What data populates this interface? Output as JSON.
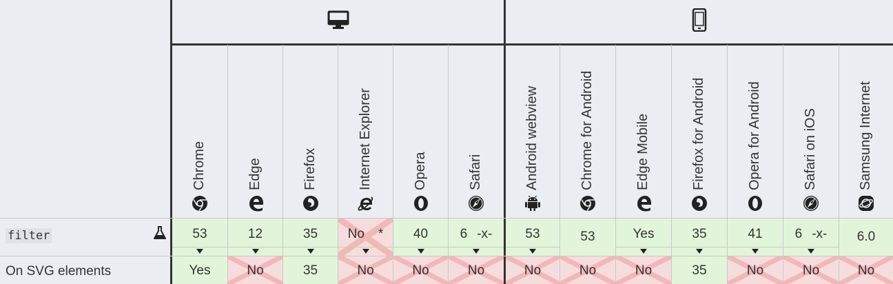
{
  "header": {
    "desktop_icon": "desktop-icon",
    "mobile_icon": "mobile-phone-icon"
  },
  "browsers": [
    {
      "name": "Chrome",
      "icon": "chrome-icon"
    },
    {
      "name": "Edge",
      "icon": "edge-icon"
    },
    {
      "name": "Firefox",
      "icon": "firefox-icon"
    },
    {
      "name": "Internet Explorer",
      "icon": "internet-explorer-icon"
    },
    {
      "name": "Opera",
      "icon": "opera-icon"
    },
    {
      "name": "Safari",
      "icon": "safari-icon"
    },
    {
      "name": "Android webview",
      "icon": "android-icon"
    },
    {
      "name": "Chrome for Android",
      "icon": "chrome-icon"
    },
    {
      "name": "Edge Mobile",
      "icon": "edge-icon"
    },
    {
      "name": "Firefox for Android",
      "icon": "firefox-icon"
    },
    {
      "name": "Opera for Android",
      "icon": "opera-icon"
    },
    {
      "name": "Safari on iOS",
      "icon": "safari-icon"
    },
    {
      "name": "Samsung Internet",
      "icon": "samsung-internet-icon"
    }
  ],
  "rows": [
    {
      "feature": "filter",
      "feature_icon": "experimental-flask-icon",
      "cells": [
        {
          "text": "53",
          "support": "yes",
          "arrow": true
        },
        {
          "text": "12",
          "support": "yes",
          "arrow": true
        },
        {
          "text": "35",
          "support": "yes",
          "arrow": true
        },
        {
          "text": "No",
          "support": "no",
          "arrow": true,
          "note": "*"
        },
        {
          "text": "40",
          "support": "yes",
          "arrow": true
        },
        {
          "text": "6",
          "support": "yes",
          "arrow": true,
          "prefix": "-x-"
        },
        {
          "text": "53",
          "support": "yes",
          "arrow": true
        },
        {
          "text": "53",
          "support": "yes",
          "arrow": false
        },
        {
          "text": "Yes",
          "support": "yes",
          "arrow": true
        },
        {
          "text": "35",
          "support": "yes",
          "arrow": true
        },
        {
          "text": "41",
          "support": "yes",
          "arrow": true
        },
        {
          "text": "6",
          "support": "yes",
          "arrow": true,
          "prefix": "-x-"
        },
        {
          "text": "6.0",
          "support": "yes",
          "arrow": false
        }
      ]
    },
    {
      "feature": "On SVG elements",
      "cells": [
        {
          "text": "Yes",
          "support": "yes"
        },
        {
          "text": "No",
          "support": "no"
        },
        {
          "text": "35",
          "support": "yes"
        },
        {
          "text": "No",
          "support": "no"
        },
        {
          "text": "No",
          "support": "no"
        },
        {
          "text": "No",
          "support": "no"
        },
        {
          "text": "No",
          "support": "no"
        },
        {
          "text": "No",
          "support": "no"
        },
        {
          "text": "No",
          "support": "no"
        },
        {
          "text": "35",
          "support": "yes"
        },
        {
          "text": "No",
          "support": "no"
        },
        {
          "text": "No",
          "support": "no"
        },
        {
          "text": "No",
          "support": "no"
        }
      ]
    }
  ],
  "colors": {
    "supported": "#e2f5da",
    "unsupported": "#f6dddd",
    "cross": "#f2b8b8",
    "border": "#333333"
  }
}
